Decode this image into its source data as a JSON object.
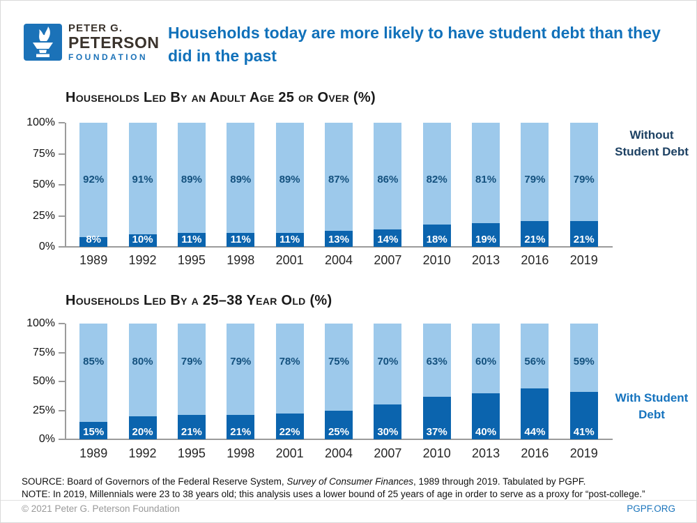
{
  "brand": {
    "line1": "PETER G.",
    "line2": "PETERSON",
    "line3": "FOUNDATION",
    "logo_icon": "torch-icon"
  },
  "header": {
    "title": "Households today are more likely to have student debt than they did in the past"
  },
  "colors": {
    "accent_blue": "#1171ba",
    "bar_light": "#9dc9eb",
    "bar_dark": "#0b64ae",
    "legend_without": "#1d4163",
    "legend_with": "#1573be",
    "axis_gray": "#9b9b9b"
  },
  "chart_data": [
    {
      "type": "bar",
      "stacked": true,
      "title": "Households Led By an Adult Age 25 or Over (%)",
      "categories": [
        "1989",
        "1992",
        "1995",
        "1998",
        "2001",
        "2004",
        "2007",
        "2010",
        "2013",
        "2016",
        "2019"
      ],
      "series": [
        {
          "name": "Without Student Debt",
          "color": "#9dc9eb",
          "values": [
            92,
            91,
            89,
            89,
            89,
            87,
            86,
            82,
            81,
            79,
            79
          ]
        },
        {
          "name": "With Student Debt",
          "color": "#0b64ae",
          "values": [
            8,
            10,
            11,
            11,
            11,
            13,
            14,
            18,
            19,
            21,
            21
          ]
        }
      ],
      "ylim": [
        0,
        100
      ],
      "yticks": [
        "100%",
        "75%",
        "50%",
        "25%",
        "0%"
      ],
      "grid": false,
      "legend_label": "Without Student Debt",
      "legend_color": "#1d4163",
      "legend_position": "right"
    },
    {
      "type": "bar",
      "stacked": true,
      "title": "Households Led By a 25–38 Year Old (%)",
      "categories": [
        "1989",
        "1992",
        "1995",
        "1998",
        "2001",
        "2004",
        "2007",
        "2010",
        "2013",
        "2016",
        "2019"
      ],
      "series": [
        {
          "name": "Without Student Debt",
          "color": "#9dc9eb",
          "values": [
            85,
            80,
            79,
            79,
            78,
            75,
            70,
            63,
            60,
            56,
            59
          ]
        },
        {
          "name": "With Student Debt",
          "color": "#0b64ae",
          "values": [
            15,
            20,
            21,
            21,
            22,
            25,
            30,
            37,
            40,
            44,
            41
          ]
        }
      ],
      "ylim": [
        0,
        100
      ],
      "yticks": [
        "100%",
        "75%",
        "50%",
        "25%",
        "0%"
      ],
      "grid": false,
      "legend_label": "With Student Debt",
      "legend_color": "#1573be",
      "legend_position": "right"
    }
  ],
  "footer": {
    "source_prefix": "SOURCE: Board of Governors of the Federal Reserve System, ",
    "source_italic": "Survey of Consumer Finances",
    "source_suffix": ", 1989 through 2019. Tabulated by PGPF.",
    "note": "NOTE: In 2019, Millennials were 23 to 38 years old; this analysis uses a lower bound of 25 years of age in order to serve as a proxy for “post-college.”",
    "copyright": "© 2021 Peter G. Peterson Foundation",
    "site": "PGPF.ORG"
  }
}
